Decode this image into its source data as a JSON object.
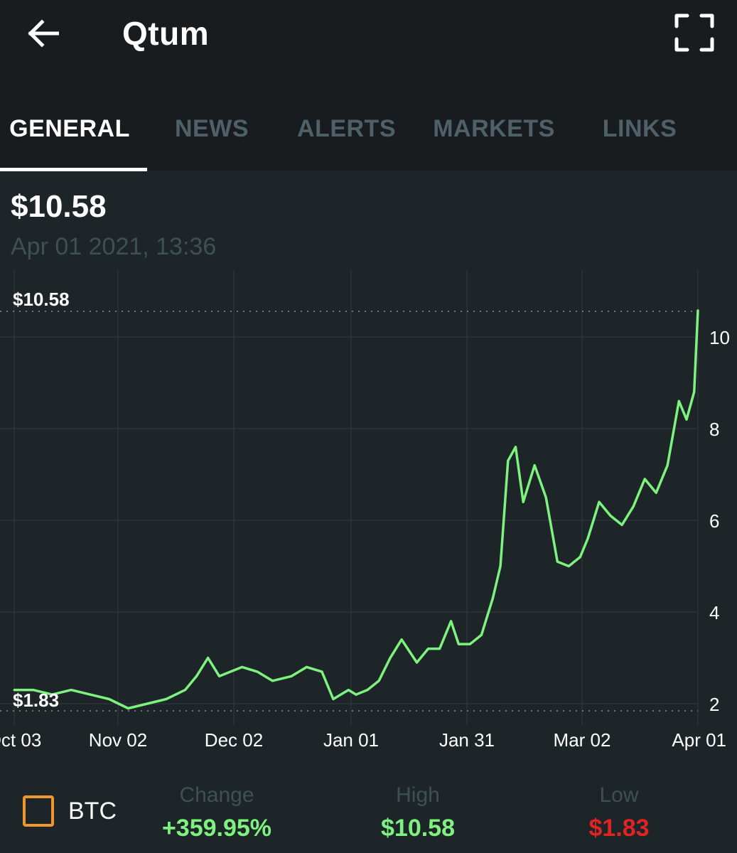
{
  "header": {
    "title": "Qtum"
  },
  "tabs": [
    {
      "label": "GENERAL",
      "active": true
    },
    {
      "label": "NEWS",
      "active": false
    },
    {
      "label": "ALERTS",
      "active": false
    },
    {
      "label": "MARKETS",
      "active": false
    },
    {
      "label": "LINKS",
      "active": false
    }
  ],
  "price": {
    "current": "$10.58",
    "timestamp": "Apr 01 2021, 13:36"
  },
  "chart_data": {
    "type": "line",
    "x_ticks": [
      "Oct 03",
      "Nov 02",
      "Dec 02",
      "Jan 01",
      "Jan 31",
      "Mar 02",
      "Apr 01"
    ],
    "y_ticks": [
      2,
      4,
      6,
      8,
      10
    ],
    "ylim": [
      1.8,
      11.3
    ],
    "max_label": "$10.58",
    "min_label": "$1.83",
    "line_color": "#7ef27f",
    "grid": true,
    "series": [
      {
        "x": [
          "2020-10-03",
          "2020-10-08",
          "2020-10-13",
          "2020-10-18",
          "2020-10-23",
          "2020-10-28",
          "2020-11-02",
          "2020-11-07",
          "2020-11-12",
          "2020-11-17",
          "2020-11-20",
          "2020-11-23",
          "2020-11-26",
          "2020-12-02",
          "2020-12-06",
          "2020-12-10",
          "2020-12-15",
          "2020-12-19",
          "2020-12-23",
          "2020-12-26",
          "2020-12-30",
          "2021-01-01",
          "2021-01-04",
          "2021-01-07",
          "2021-01-10",
          "2021-01-13",
          "2021-01-17",
          "2021-01-20",
          "2021-01-23",
          "2021-01-26",
          "2021-01-28",
          "2021-01-31",
          "2021-02-03",
          "2021-02-06",
          "2021-02-08",
          "2021-02-10",
          "2021-02-12",
          "2021-02-14",
          "2021-02-17",
          "2021-02-20",
          "2021-02-23",
          "2021-02-26",
          "2021-03-01",
          "2021-03-03",
          "2021-03-06",
          "2021-03-09",
          "2021-03-12",
          "2021-03-15",
          "2021-03-18",
          "2021-03-21",
          "2021-03-24",
          "2021-03-27",
          "2021-03-29",
          "2021-03-31",
          "2021-04-01"
        ],
        "values": [
          2.3,
          2.3,
          2.2,
          2.3,
          2.2,
          2.1,
          1.9,
          2.0,
          2.1,
          2.3,
          2.6,
          3.0,
          2.6,
          2.8,
          2.7,
          2.5,
          2.6,
          2.8,
          2.7,
          2.1,
          2.3,
          2.2,
          2.3,
          2.5,
          3.0,
          3.4,
          2.9,
          3.2,
          3.2,
          3.8,
          3.3,
          3.3,
          3.5,
          4.3,
          5.0,
          7.3,
          7.6,
          6.4,
          7.2,
          6.5,
          5.1,
          5.0,
          5.2,
          5.6,
          6.4,
          6.1,
          5.9,
          6.3,
          6.9,
          6.6,
          7.2,
          8.6,
          8.2,
          8.8,
          10.58
        ]
      }
    ]
  },
  "stats": {
    "toggle_label": "BTC",
    "change_label": "Change",
    "change_value": "+359.95%",
    "high_label": "High",
    "high_value": "$10.58",
    "low_label": "Low",
    "low_value": "$1.83",
    "colors": {
      "positive": "#7ef27f",
      "negative": "#e02424",
      "checkbox": "#f0962e"
    }
  }
}
